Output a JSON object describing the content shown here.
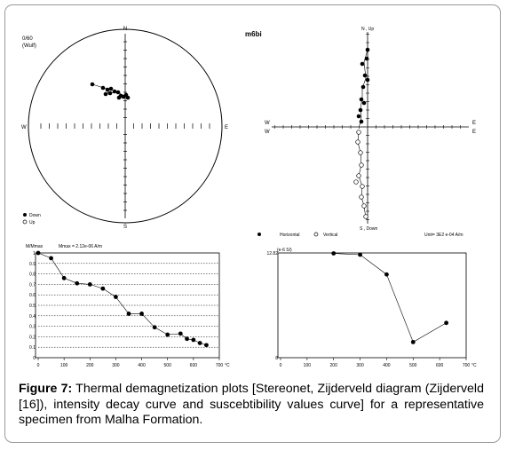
{
  "figure": {
    "label": "Figure 7:",
    "caption": "Thermal demagnetization plots [Stereonet, Zijderveld diagram (Zijderveld [16]), intensity decay curve and suscebtibility values curve] for a representative specimen from Malha Formation."
  },
  "stereonet": {
    "top_left_label_1": "0/60",
    "top_left_label_2": "(Wulf)",
    "north": "N",
    "south": "S",
    "east": "E",
    "west": "W",
    "legend": [
      {
        "symbol": "filled",
        "label": "Down"
      },
      {
        "symbol": "open",
        "label": "Up"
      }
    ]
  },
  "zijderveld": {
    "title": "m6bi",
    "north_label": "N , Up",
    "south_label": "S , Down",
    "east_labels": [
      "E",
      "E"
    ],
    "west_labels": [
      "W",
      "W"
    ],
    "legend": [
      {
        "symbol": "filled",
        "label": "Horizontal"
      },
      {
        "symbol": "open",
        "label": "Vertical"
      }
    ],
    "unit_text": "Unit= 3E2 e-04 A/m"
  },
  "chart_data": [
    {
      "type": "line",
      "title": "",
      "ylabel": "M/Mmax",
      "annotation": "Mmax = 2.12e-06 A/m",
      "xlabel": "°C",
      "xlim": [
        0,
        700
      ],
      "ylim": [
        0,
        1
      ],
      "x_ticks": [
        "0",
        "100",
        "200",
        "300",
        "400",
        "500",
        "600",
        "700"
      ],
      "y_ticks": [
        "0",
        "0.1",
        "0.2",
        "0.3",
        "0.4",
        "0.5",
        "0.6",
        "0.7",
        "0.8",
        "0.9",
        "1"
      ],
      "x": [
        0,
        50,
        100,
        150,
        200,
        250,
        300,
        350,
        400,
        450,
        500,
        550,
        575,
        600,
        625,
        650
      ],
      "y": [
        1.0,
        0.95,
        0.76,
        0.71,
        0.7,
        0.66,
        0.58,
        0.42,
        0.42,
        0.29,
        0.22,
        0.23,
        0.18,
        0.17,
        0.14,
        0.12
      ],
      "grid": "dotted horizontal"
    },
    {
      "type": "line",
      "title": "",
      "ylabel": "(e-6 SI)",
      "xlabel": "°C",
      "xlim": [
        0,
        700
      ],
      "ylim": [
        8,
        12.82
      ],
      "x_ticks": [
        "0",
        "100",
        "200",
        "300",
        "400",
        "500",
        "600",
        "700"
      ],
      "y_ticks": [
        "8",
        "12.82"
      ],
      "x": [
        200,
        300,
        400,
        500,
        625
      ],
      "y": [
        12.8,
        12.74,
        11.83,
        8.72,
        9.6
      ],
      "grid": "none"
    }
  ]
}
